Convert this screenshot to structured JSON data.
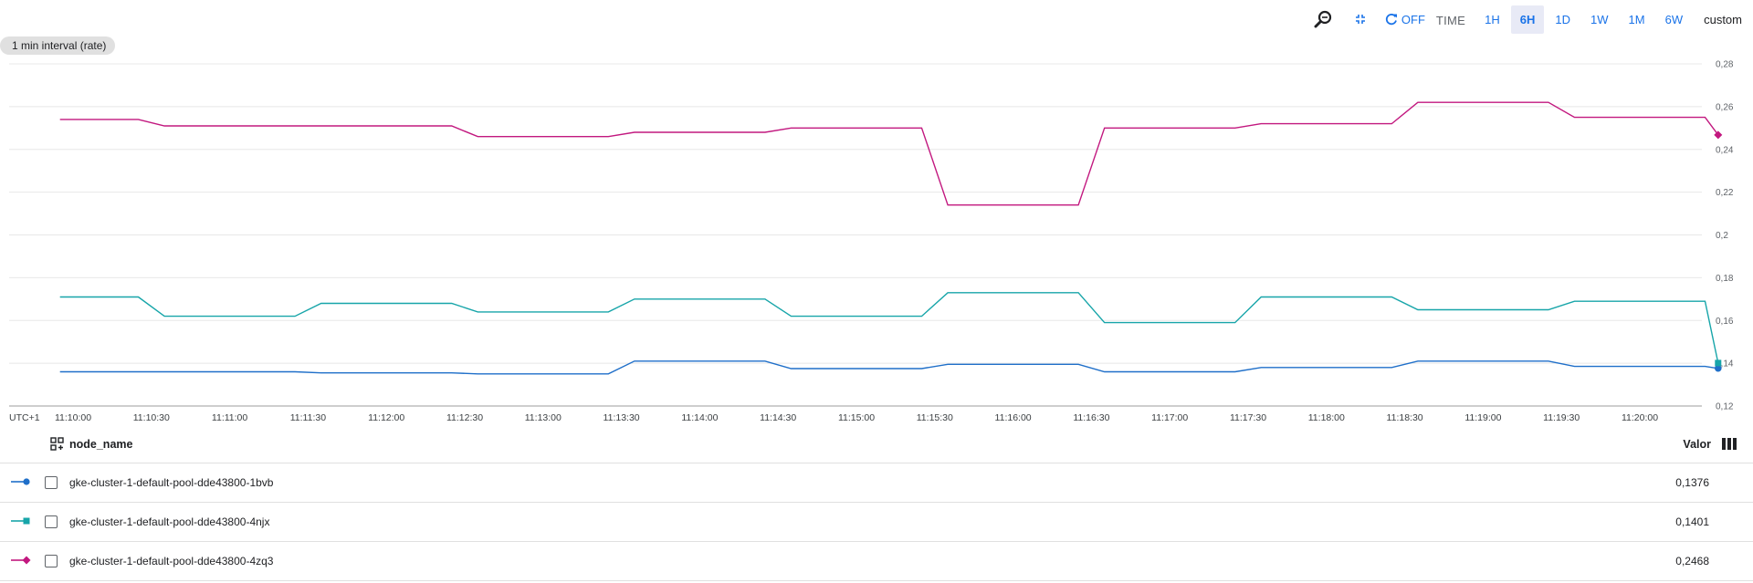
{
  "toolbar": {
    "refresh_label": "OFF",
    "time_label": "TIME",
    "ranges": [
      "1H",
      "6H",
      "1D",
      "1W",
      "1M",
      "6W"
    ],
    "active_range": "6H",
    "custom_label": "custom",
    "icons": {
      "zoom": "zoom-reset-icon",
      "collapse": "collapse-icon",
      "refresh": "refresh-icon"
    }
  },
  "interval_label": "1 min interval (rate)",
  "colors": {
    "series_1bvb": "#1f6fc9",
    "series_4njx": "#17a5a9",
    "series_4zq3": "#c2187f",
    "accent": "#1a73e8"
  },
  "chart_data": {
    "type": "line",
    "ylim": [
      0.12,
      0.28
    ],
    "y_ticks": [
      "0,12",
      "0,14",
      "0,16",
      "0,18",
      "0,2",
      "0,22",
      "0,24",
      "0,26",
      "0,28"
    ],
    "timezone_label": "UTC+1",
    "x_ticks": [
      "11:10:00",
      "11:10:30",
      "11:11:00",
      "11:11:30",
      "11:12:00",
      "11:12:30",
      "11:13:00",
      "11:13:30",
      "11:14:00",
      "11:14:30",
      "11:15:00",
      "11:15:30",
      "11:16:00",
      "11:16:30",
      "11:17:00",
      "11:17:30",
      "11:18:00",
      "11:18:30",
      "11:19:00",
      "11:19:30",
      "11:20:00"
    ],
    "x": [
      "11:09:55",
      "11:10:25",
      "11:10:35",
      "11:11:25",
      "11:11:35",
      "11:12:25",
      "11:12:35",
      "11:13:25",
      "11:13:35",
      "11:14:25",
      "11:14:35",
      "11:15:25",
      "11:15:35",
      "11:16:25",
      "11:16:35",
      "11:17:25",
      "11:17:35",
      "11:18:25",
      "11:18:35",
      "11:19:25",
      "11:19:35",
      "11:20:25",
      "11:20:30"
    ],
    "series": [
      {
        "name": "gke-cluster-1-default-pool-dde43800-1bvb",
        "marker": "circle",
        "values": [
          0.136,
          0.136,
          0.136,
          0.136,
          0.1355,
          0.1355,
          0.135,
          0.135,
          0.141,
          0.141,
          0.1375,
          0.1375,
          0.1395,
          0.1395,
          0.136,
          0.136,
          0.138,
          0.138,
          0.141,
          0.141,
          0.1385,
          0.1385,
          0.1376
        ]
      },
      {
        "name": "gke-cluster-1-default-pool-dde43800-4njx",
        "marker": "square",
        "values": [
          0.171,
          0.171,
          0.162,
          0.162,
          0.168,
          0.168,
          0.164,
          0.164,
          0.17,
          0.17,
          0.162,
          0.162,
          0.173,
          0.173,
          0.159,
          0.159,
          0.171,
          0.171,
          0.165,
          0.165,
          0.169,
          0.169,
          0.1401
        ]
      },
      {
        "name": "gke-cluster-1-default-pool-dde43800-4zq3",
        "marker": "diamond",
        "values": [
          0.254,
          0.254,
          0.251,
          0.251,
          0.251,
          0.251,
          0.246,
          0.246,
          0.248,
          0.248,
          0.25,
          0.25,
          0.214,
          0.214,
          0.25,
          0.25,
          0.252,
          0.252,
          0.262,
          0.262,
          0.255,
          0.255,
          0.2468
        ]
      }
    ],
    "grid": true,
    "legend": "table-below"
  },
  "table": {
    "header_name": "node_name",
    "header_value": "Valor",
    "rows": [
      {
        "label": "gke-cluster-1-default-pool-dde43800-1bvb",
        "value": "0,1376"
      },
      {
        "label": "gke-cluster-1-default-pool-dde43800-4njx",
        "value": "0,1401"
      },
      {
        "label": "gke-cluster-1-default-pool-dde43800-4zq3",
        "value": "0,2468"
      }
    ]
  }
}
